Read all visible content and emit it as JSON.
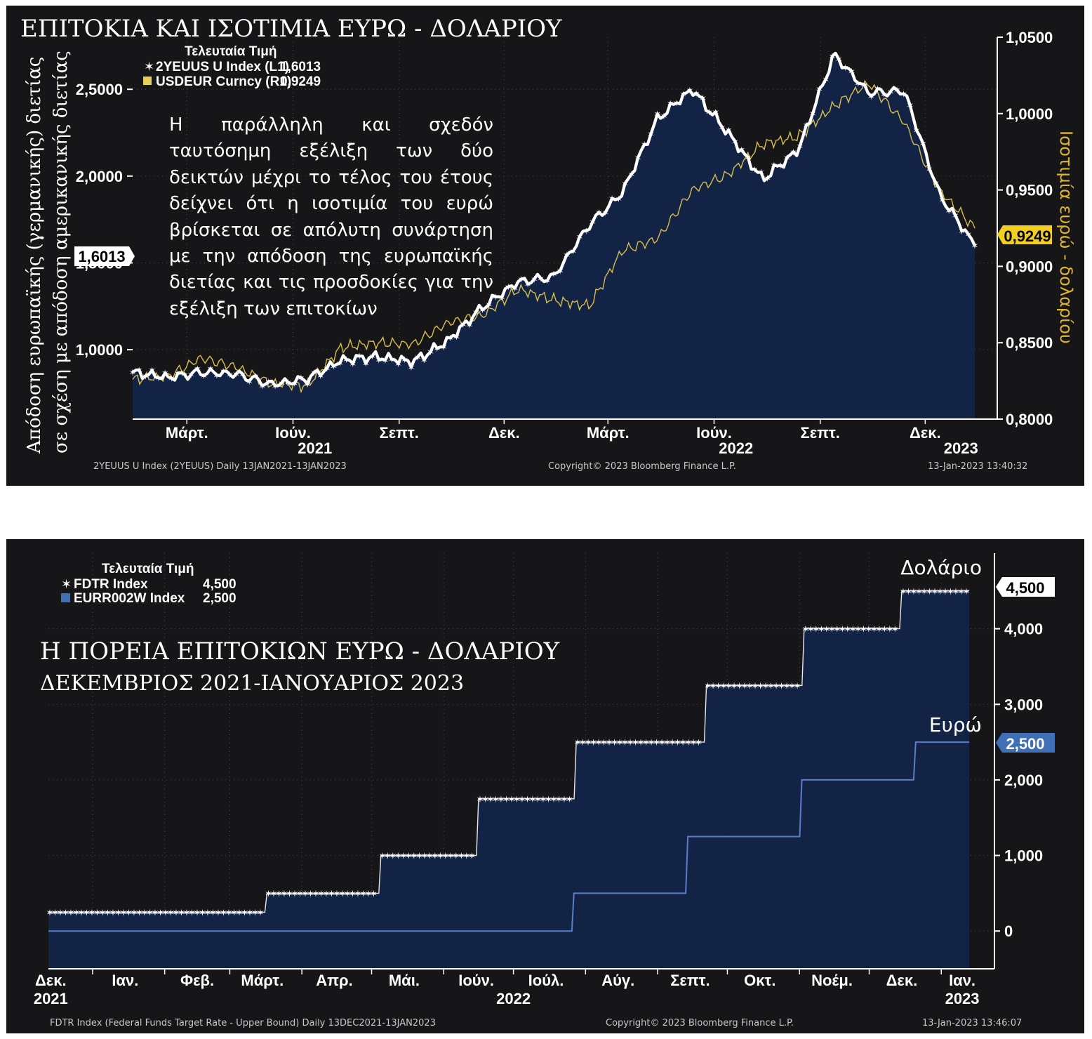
{
  "chart_data": [
    {
      "type": "line",
      "title": "ΕΠΙΤΟΚΙΑ ΚΑΙ ΙΣΟΤΙΜΙΑ ΕΥΡΩ - ΔΟΛΑΡΙΟΥ",
      "annotation": "Η παράλληλη και σχεδόν ταυτόσημη εξέλιξη των δύο δεικτών μέχρι το τέλος του έτους δείχνει ότι η ισοτιμία του ευρώ βρίσκεται σε απόλυτη συνάρτηση με την απόδοση της ευρωπαϊκής διετίας και τις προσδοκίες για την εξέλιξη των επιτοκίων",
      "ylabel_left_line1": "Απόδοση ευρωπαϊκής (γερμανικής) διετίας",
      "ylabel_left_line2": "σε σχέση με απόδοση αμερικανικής διετίας",
      "ylabel_right": "Ισοτιμία ευρώ - δολαρίου",
      "ylim_left": [
        0.6,
        2.8
      ],
      "ylim_right": [
        0.8,
        1.05
      ],
      "yticks_left": [
        "1,0000",
        "1,5000",
        "2,0000",
        "2,5000"
      ],
      "yticks_right": [
        "0,8000",
        "0,8500",
        "0,9000",
        "0,9500",
        "1,0000",
        "1,0500"
      ],
      "xticks": [
        "Μάρτ.",
        "Ιούν.",
        "Σεπτ.",
        "Δεκ.",
        "Μάρτ.",
        "Ιούν.",
        "Σεπτ.",
        "Δεκ."
      ],
      "year_labels": [
        "2021",
        "2022",
        "2023"
      ],
      "legend_header": "Τελευταία Τιμή",
      "legend": [
        {
          "name": "2YEUUS U Index (L1)",
          "last": "1,6013",
          "color": "#ffffff"
        },
        {
          "name": "USDEUR Curncy (R1)",
          "last": "0,9249",
          "color": "#e8cf5a"
        }
      ],
      "last_value_left": "1,6013",
      "last_value_right": "0,9249",
      "x_range": [
        "2021-01-13",
        "2023-01-13"
      ],
      "x": [
        "2021-01-13",
        "2021-02-13",
        "2021-03-13",
        "2021-04-13",
        "2021-05-13",
        "2021-06-13",
        "2021-07-13",
        "2021-08-13",
        "2021-09-13",
        "2021-10-13",
        "2021-11-13",
        "2021-12-13",
        "2022-01-13",
        "2022-02-13",
        "2022-03-13",
        "2022-04-13",
        "2022-05-13",
        "2022-06-13",
        "2022-07-13",
        "2022-08-13",
        "2022-09-13",
        "2022-10-13",
        "2022-11-13",
        "2022-12-13",
        "2023-01-13"
      ],
      "series": [
        {
          "name": "2YEUUS U Index (L1)",
          "axis": "left",
          "values": [
            0.87,
            0.84,
            0.87,
            0.86,
            0.8,
            0.83,
            0.94,
            0.96,
            0.93,
            1.05,
            1.25,
            1.39,
            1.42,
            1.72,
            1.9,
            2.33,
            2.5,
            2.25,
            1.98,
            2.15,
            2.7,
            2.48,
            2.49,
            1.9,
            1.6
          ]
        },
        {
          "name": "USDEUR Curncy (R1)",
          "axis": "right",
          "values": [
            0.826,
            0.828,
            0.84,
            0.834,
            0.823,
            0.822,
            0.847,
            0.85,
            0.849,
            0.863,
            0.868,
            0.885,
            0.878,
            0.874,
            0.91,
            0.918,
            0.95,
            0.96,
            0.98,
            0.985,
            1.005,
            1.02,
            0.994,
            0.95,
            0.925
          ]
        }
      ],
      "footer_left": "2YEUUS U Index (2YEUUS)  Daily 13JAN2021-13JAN2023",
      "footer_center": "Copyright© 2023 Bloomberg Finance L.P.",
      "footer_right": "13-Jan-2023 13:40:32"
    },
    {
      "type": "line",
      "title": "Η ΠΟΡΕΙΑ ΕΠΙΤΟΚΙΩΝ ΕΥΡΩ - ΔΟΛΑΡΙΟΥ",
      "subtitle": "ΔΕΚΕΜΒΡΙΟΣ 2021-ΙΑΝΟΥΑΡΙΟΣ 2023",
      "ylim": [
        -0.5,
        5.0
      ],
      "yticks": [
        "0",
        "1,000",
        "2,000",
        "3,000",
        "4,000"
      ],
      "xticks": [
        "Δεκ.",
        "Ιαν.",
        "Φεβ.",
        "Μάρτ.",
        "Απρ.",
        "Μάι.",
        "Ιούν.",
        "Ιούλ.",
        "Αύγ.",
        "Σεπτ.",
        "Οκτ.",
        "Νοέμ.",
        "Δεκ.",
        "Ιαν."
      ],
      "year_labels": [
        "2021",
        "2022",
        "2023"
      ],
      "legend_header": "Τελευταία Τιμή",
      "legend": [
        {
          "name": "FDTR Index",
          "last": "4,500",
          "color": "#ffffff"
        },
        {
          "name": "EURR002W Index",
          "last": "2,500",
          "color": "#3f6fb5"
        }
      ],
      "label_dollar": "Δολάριο",
      "label_euro": "Ευρώ",
      "last_value_dollar": "4,500",
      "last_value_euro": "2,500",
      "x_range": [
        "2021-12-13",
        "2023-01-13"
      ],
      "series": [
        {
          "name": "FDTR Index",
          "step": true,
          "points": [
            [
              "2021-12-13",
              0.25
            ],
            [
              "2022-03-17",
              0.5
            ],
            [
              "2022-05-05",
              1.0
            ],
            [
              "2022-06-16",
              1.75
            ],
            [
              "2022-07-28",
              2.5
            ],
            [
              "2022-09-22",
              3.25
            ],
            [
              "2022-11-03",
              4.0
            ],
            [
              "2022-12-15",
              4.5
            ],
            [
              "2023-01-13",
              4.5
            ]
          ]
        },
        {
          "name": "EURR002W Index",
          "step": true,
          "points": [
            [
              "2021-12-13",
              0.0
            ],
            [
              "2022-07-27",
              0.5
            ],
            [
              "2022-09-14",
              1.25
            ],
            [
              "2022-11-02",
              2.0
            ],
            [
              "2022-12-21",
              2.5
            ],
            [
              "2023-01-13",
              2.5
            ]
          ]
        }
      ],
      "footer_left": "FDTR Index (Federal Funds Target Rate - Upper Bound)  Daily 13DEC2021-13JAN2023",
      "footer_center": "Copyright© 2023 Bloomberg Finance L.P.",
      "footer_right": "13-Jan-2023 13:46:07"
    }
  ]
}
